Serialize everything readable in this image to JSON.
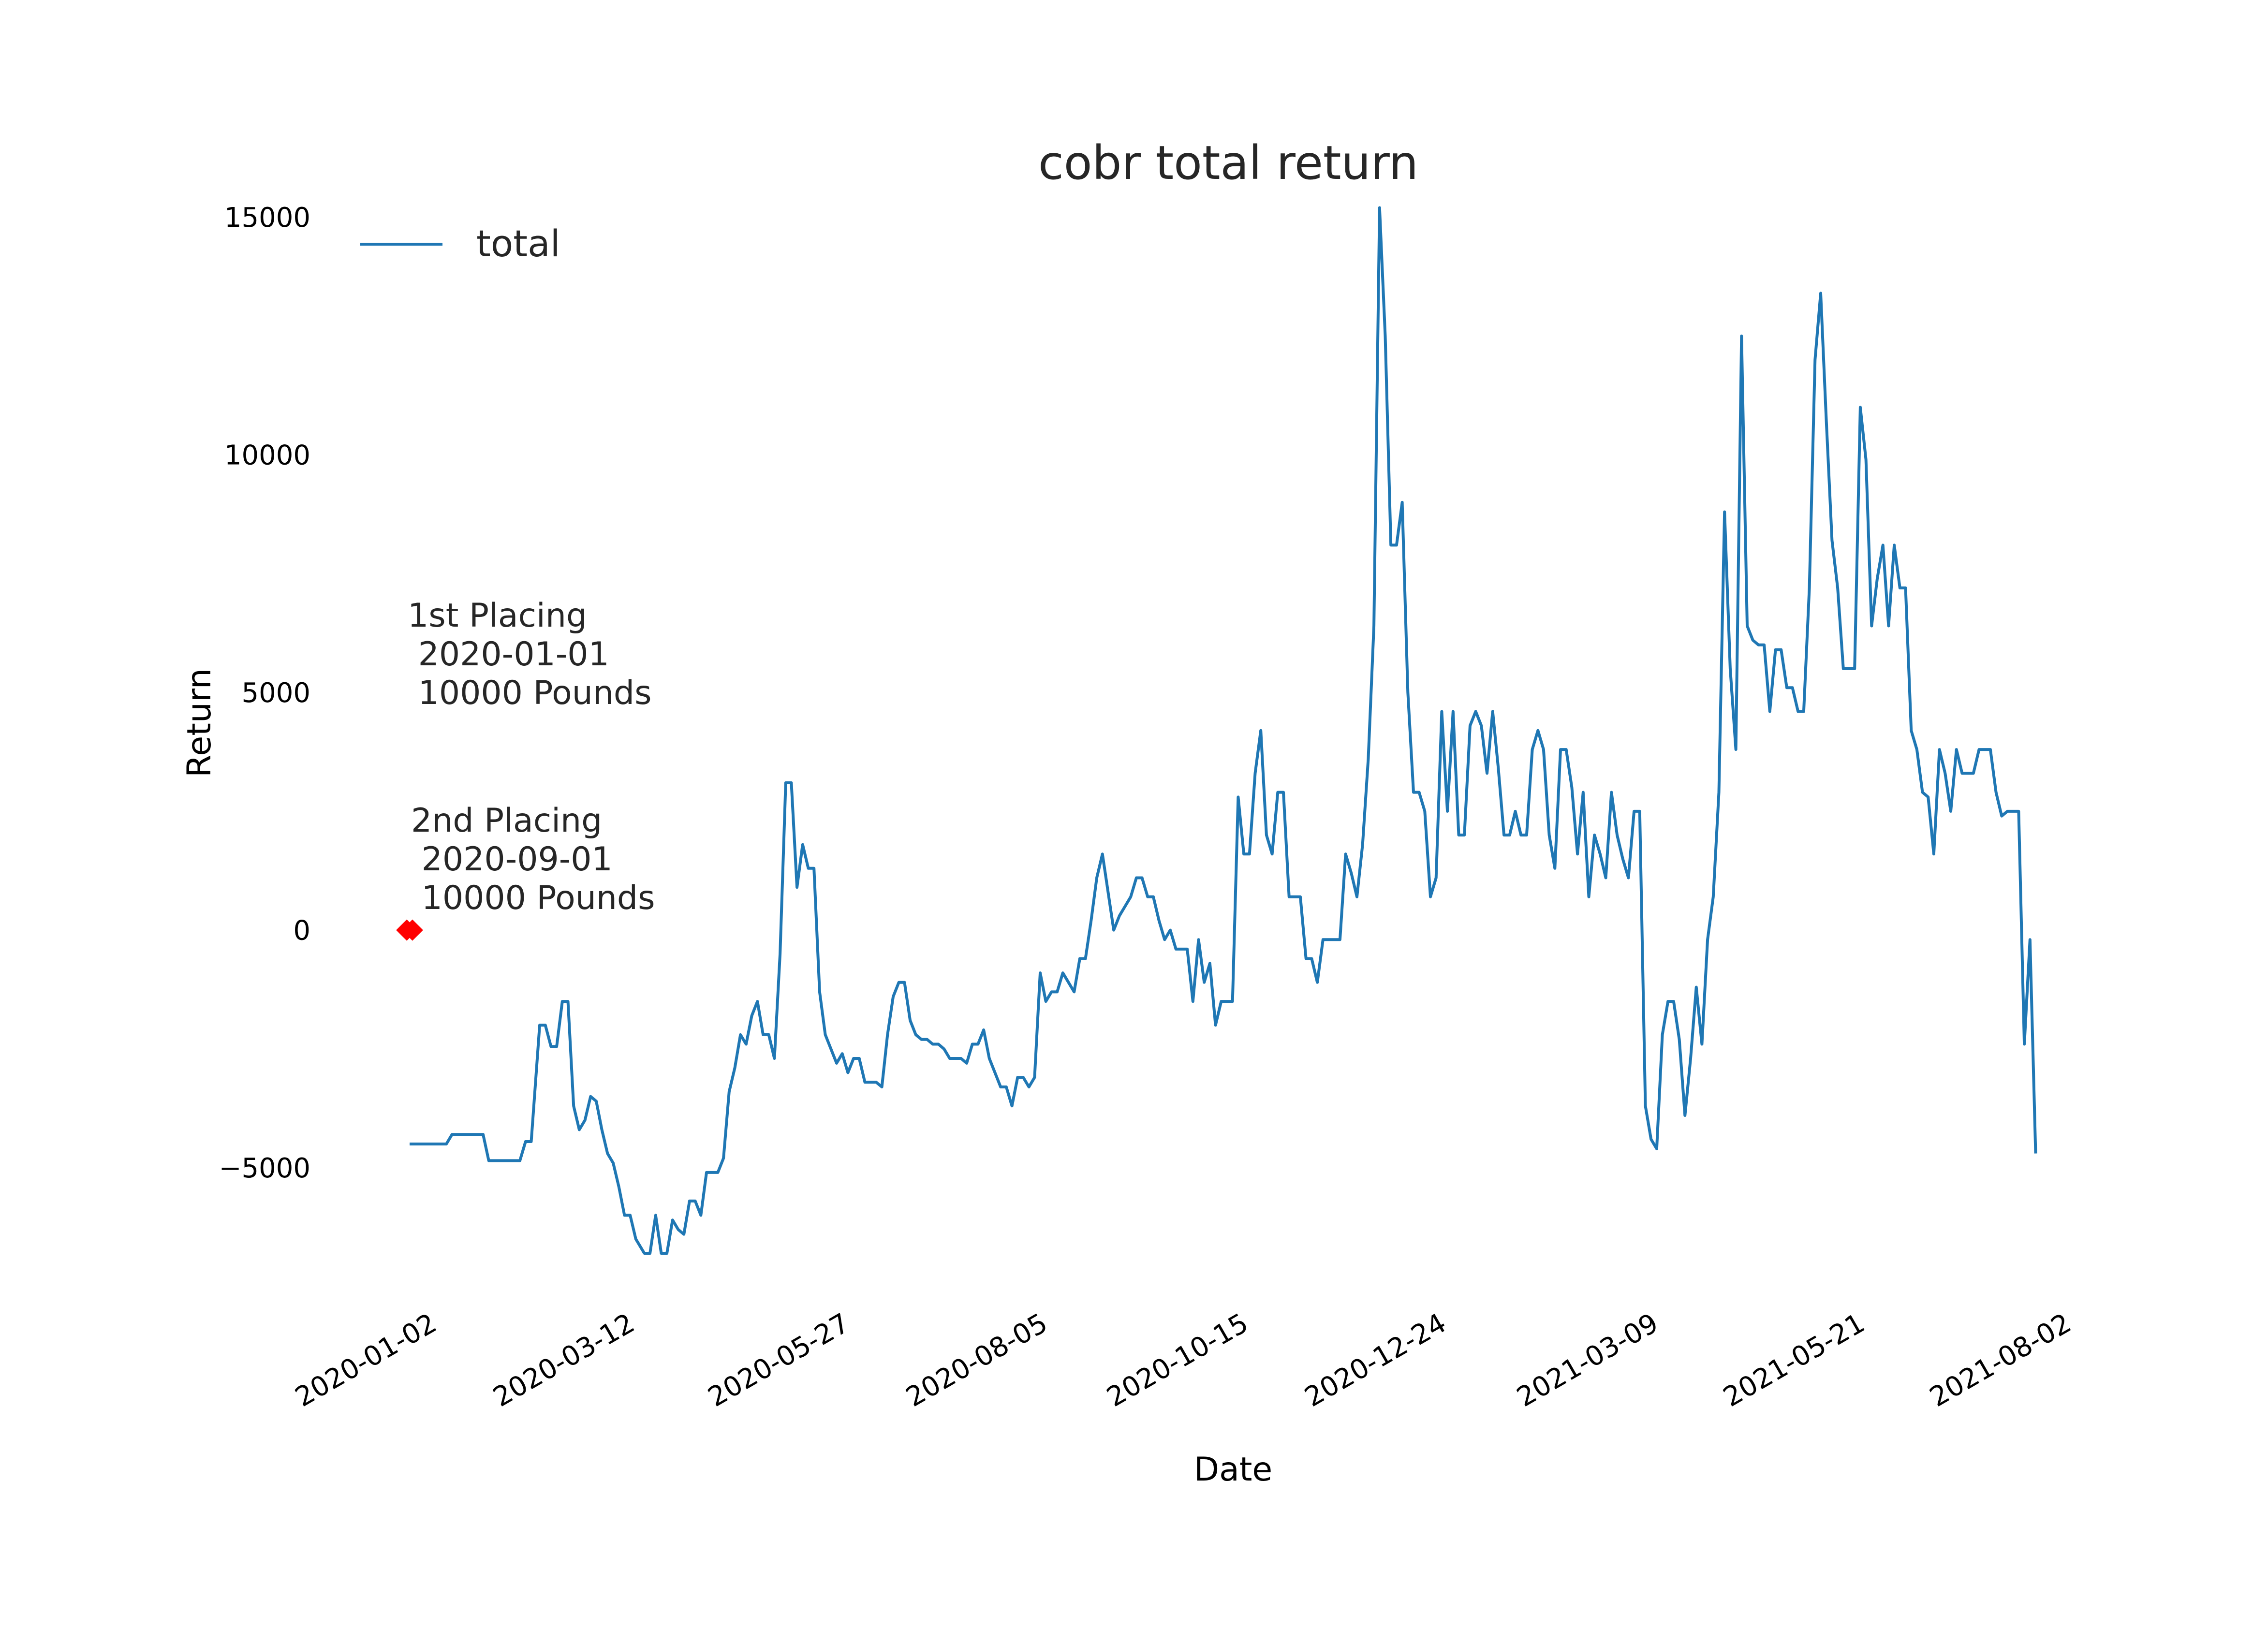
{
  "chart_data": {
    "type": "line",
    "title": "cobr total return",
    "xlabel": "Date",
    "ylabel": "Return",
    "x_range": [
      "2020-01-02",
      "2021-08-02"
    ],
    "ylim": [
      -8000,
      15500
    ],
    "grid": false,
    "legend": {
      "position": "top-left",
      "entries": [
        "total"
      ]
    },
    "x_ticks": [
      "2020-01-02",
      "2020-03-12",
      "2020-05-27",
      "2020-08-05",
      "2020-10-15",
      "2020-12-24",
      "2021-03-09",
      "2021-05-21",
      "2021-08-02"
    ],
    "y_ticks": [
      -5000,
      0,
      5000,
      10000,
      15000
    ],
    "y_tick_labels": [
      "−5000",
      "0",
      "5000",
      "10000",
      "15000"
    ],
    "series": [
      {
        "name": "total",
        "color": "#1f77b4",
        "points": [
          [
            "2020-01-02",
            -4500
          ],
          [
            "2020-01-15",
            -4500
          ],
          [
            "2020-01-17",
            -4300
          ],
          [
            "2020-01-28",
            -4300
          ],
          [
            "2020-01-30",
            -4850
          ],
          [
            "2020-02-10",
            -4850
          ],
          [
            "2020-02-12",
            -4450
          ],
          [
            "2020-02-14",
            -4450
          ],
          [
            "2020-02-17",
            -2000
          ],
          [
            "2020-02-19",
            -2000
          ],
          [
            "2020-02-21",
            -2450
          ],
          [
            "2020-02-23",
            -2450
          ],
          [
            "2020-02-25",
            -1500
          ],
          [
            "2020-02-27",
            -1500
          ],
          [
            "2020-02-29",
            -3700
          ],
          [
            "2020-03-02",
            -4200
          ],
          [
            "2020-03-04",
            -4000
          ],
          [
            "2020-03-06",
            -3500
          ],
          [
            "2020-03-08",
            -3600
          ],
          [
            "2020-03-10",
            -4200
          ],
          [
            "2020-03-12",
            -4700
          ],
          [
            "2020-03-14",
            -4900
          ],
          [
            "2020-03-16",
            -5400
          ],
          [
            "2020-03-18",
            -6000
          ],
          [
            "2020-03-20",
            -6000
          ],
          [
            "2020-03-22",
            -6500
          ],
          [
            "2020-03-25",
            -6800
          ],
          [
            "2020-03-27",
            -6800
          ],
          [
            "2020-03-29",
            -6000
          ],
          [
            "2020-03-31",
            -6800
          ],
          [
            "2020-04-02",
            -6800
          ],
          [
            "2020-04-04",
            -6100
          ],
          [
            "2020-04-06",
            -6300
          ],
          [
            "2020-04-08",
            -6400
          ],
          [
            "2020-04-10",
            -5700
          ],
          [
            "2020-04-12",
            -5700
          ],
          [
            "2020-04-14",
            -6000
          ],
          [
            "2020-04-16",
            -5100
          ],
          [
            "2020-04-18",
            -5100
          ],
          [
            "2020-04-20",
            -5100
          ],
          [
            "2020-04-22",
            -4800
          ],
          [
            "2020-04-24",
            -3400
          ],
          [
            "2020-04-26",
            -2900
          ],
          [
            "2020-04-28",
            -2200
          ],
          [
            "2020-04-30",
            -2400
          ],
          [
            "2020-05-02",
            -1800
          ],
          [
            "2020-05-04",
            -1500
          ],
          [
            "2020-05-06",
            -2200
          ],
          [
            "2020-05-08",
            -2200
          ],
          [
            "2020-05-10",
            -2700
          ],
          [
            "2020-05-12",
            -500
          ],
          [
            "2020-05-14",
            3100
          ],
          [
            "2020-05-16",
            3100
          ],
          [
            "2020-05-18",
            900
          ],
          [
            "2020-05-20",
            1800
          ],
          [
            "2020-05-22",
            1300
          ],
          [
            "2020-05-24",
            1300
          ],
          [
            "2020-05-26",
            -1300
          ],
          [
            "2020-05-28",
            -2200
          ],
          [
            "2020-05-30",
            -2500
          ],
          [
            "2020-06-01",
            -2800
          ],
          [
            "2020-06-03",
            -2600
          ],
          [
            "2020-06-05",
            -3000
          ],
          [
            "2020-06-07",
            -2700
          ],
          [
            "2020-06-09",
            -2700
          ],
          [
            "2020-06-11",
            -3200
          ],
          [
            "2020-06-13",
            -3200
          ],
          [
            "2020-06-15",
            -3200
          ],
          [
            "2020-06-17",
            -3300
          ],
          [
            "2020-06-19",
            -2200
          ],
          [
            "2020-06-21",
            -1400
          ],
          [
            "2020-06-23",
            -1100
          ],
          [
            "2020-06-25",
            -1100
          ],
          [
            "2020-06-27",
            -1900
          ],
          [
            "2020-06-29",
            -2200
          ],
          [
            "2020-07-01",
            -2300
          ],
          [
            "2020-07-03",
            -2300
          ],
          [
            "2020-07-05",
            -2400
          ],
          [
            "2020-07-07",
            -2400
          ],
          [
            "2020-07-09",
            -2500
          ],
          [
            "2020-07-11",
            -2700
          ],
          [
            "2020-07-13",
            -2700
          ],
          [
            "2020-07-15",
            -2700
          ],
          [
            "2020-07-17",
            -2800
          ],
          [
            "2020-07-19",
            -2400
          ],
          [
            "2020-07-21",
            -2400
          ],
          [
            "2020-07-23",
            -2100
          ],
          [
            "2020-07-25",
            -2700
          ],
          [
            "2020-07-27",
            -3000
          ],
          [
            "2020-07-29",
            -3300
          ],
          [
            "2020-07-31",
            -3300
          ],
          [
            "2020-08-02",
            -3700
          ],
          [
            "2020-08-04",
            -3100
          ],
          [
            "2020-08-06",
            -3100
          ],
          [
            "2020-08-08",
            -3300
          ],
          [
            "2020-08-10",
            -3100
          ],
          [
            "2020-08-12",
            -900
          ],
          [
            "2020-08-14",
            -1500
          ],
          [
            "2020-08-16",
            -1300
          ],
          [
            "2020-08-18",
            -1300
          ],
          [
            "2020-08-20",
            -900
          ],
          [
            "2020-08-22",
            -1100
          ],
          [
            "2020-08-24",
            -1300
          ],
          [
            "2020-08-26",
            -600
          ],
          [
            "2020-08-28",
            -600
          ],
          [
            "2020-08-30",
            200
          ],
          [
            "2020-09-01",
            1100
          ],
          [
            "2020-09-03",
            1600
          ],
          [
            "2020-09-05",
            800
          ],
          [
            "2020-09-07",
            0
          ],
          [
            "2020-09-09",
            300
          ],
          [
            "2020-09-11",
            500
          ],
          [
            "2020-09-13",
            700
          ],
          [
            "2020-09-15",
            1100
          ],
          [
            "2020-09-17",
            1100
          ],
          [
            "2020-09-19",
            700
          ],
          [
            "2020-09-21",
            700
          ],
          [
            "2020-09-23",
            200
          ],
          [
            "2020-09-25",
            -200
          ],
          [
            "2020-09-27",
            0
          ],
          [
            "2020-09-29",
            -400
          ],
          [
            "2020-10-01",
            -400
          ],
          [
            "2020-10-03",
            -400
          ],
          [
            "2020-10-05",
            -1500
          ],
          [
            "2020-10-07",
            -200
          ],
          [
            "2020-10-09",
            -1100
          ],
          [
            "2020-10-11",
            -700
          ],
          [
            "2020-10-13",
            -2000
          ],
          [
            "2020-10-15",
            -1500
          ],
          [
            "2020-10-17",
            -1500
          ],
          [
            "2020-10-19",
            -1500
          ],
          [
            "2020-10-21",
            2800
          ],
          [
            "2020-10-23",
            1600
          ],
          [
            "2020-10-25",
            1600
          ],
          [
            "2020-10-27",
            3300
          ],
          [
            "2020-10-29",
            4200
          ],
          [
            "2020-10-31",
            2000
          ],
          [
            "2020-11-02",
            1600
          ],
          [
            "2020-11-04",
            2900
          ],
          [
            "2020-11-06",
            2900
          ],
          [
            "2020-11-08",
            700
          ],
          [
            "2020-11-10",
            700
          ],
          [
            "2020-11-12",
            700
          ],
          [
            "2020-11-14",
            -600
          ],
          [
            "2020-11-16",
            -600
          ],
          [
            "2020-11-18",
            -1100
          ],
          [
            "2020-11-20",
            -200
          ],
          [
            "2020-11-22",
            -200
          ],
          [
            "2020-11-24",
            -200
          ],
          [
            "2020-11-26",
            -200
          ],
          [
            "2020-11-28",
            1600
          ],
          [
            "2020-11-30",
            1200
          ],
          [
            "2020-12-02",
            700
          ],
          [
            "2020-12-04",
            1800
          ],
          [
            "2020-12-06",
            3600
          ],
          [
            "2020-12-08",
            6400
          ],
          [
            "2020-12-10",
            15200
          ],
          [
            "2020-12-12",
            12500
          ],
          [
            "2020-12-14",
            8100
          ],
          [
            "2020-12-16",
            8100
          ],
          [
            "2020-12-18",
            9000
          ],
          [
            "2020-12-20",
            5000
          ],
          [
            "2020-12-22",
            2900
          ],
          [
            "2020-12-24",
            2900
          ],
          [
            "2020-12-26",
            2500
          ],
          [
            "2020-12-28",
            700
          ],
          [
            "2020-12-30",
            1100
          ],
          [
            "2021-01-01",
            4600
          ],
          [
            "2021-01-03",
            2500
          ],
          [
            "2021-01-05",
            4600
          ],
          [
            "2021-01-07",
            2000
          ],
          [
            "2021-01-09",
            2000
          ],
          [
            "2021-01-11",
            4300
          ],
          [
            "2021-01-13",
            4600
          ],
          [
            "2021-01-15",
            4300
          ],
          [
            "2021-01-17",
            3300
          ],
          [
            "2021-01-19",
            4600
          ],
          [
            "2021-01-21",
            3400
          ],
          [
            "2021-01-23",
            2000
          ],
          [
            "2021-01-25",
            2000
          ],
          [
            "2021-01-27",
            2500
          ],
          [
            "2021-01-29",
            2000
          ],
          [
            "2021-01-31",
            2000
          ],
          [
            "2021-02-02",
            3800
          ],
          [
            "2021-02-04",
            4200
          ],
          [
            "2021-02-06",
            3800
          ],
          [
            "2021-02-08",
            2000
          ],
          [
            "2021-02-10",
            1300
          ],
          [
            "2021-02-12",
            3800
          ],
          [
            "2021-02-14",
            3800
          ],
          [
            "2021-02-16",
            3000
          ],
          [
            "2021-02-18",
            1600
          ],
          [
            "2021-02-20",
            2900
          ],
          [
            "2021-02-22",
            700
          ],
          [
            "2021-02-24",
            2000
          ],
          [
            "2021-02-26",
            1600
          ],
          [
            "2021-02-28",
            1100
          ],
          [
            "2021-03-02",
            2900
          ],
          [
            "2021-03-04",
            2000
          ],
          [
            "2021-03-06",
            1500
          ],
          [
            "2021-03-08",
            1100
          ],
          [
            "2021-03-10",
            2500
          ],
          [
            "2021-03-12",
            2500
          ],
          [
            "2021-03-14",
            -3700
          ],
          [
            "2021-03-16",
            -4400
          ],
          [
            "2021-03-18",
            -4600
          ],
          [
            "2021-03-20",
            -2200
          ],
          [
            "2021-03-22",
            -1500
          ],
          [
            "2021-03-24",
            -1500
          ],
          [
            "2021-03-26",
            -2300
          ],
          [
            "2021-03-28",
            -3900
          ],
          [
            "2021-03-30",
            -2700
          ],
          [
            "2021-04-01",
            -1200
          ],
          [
            "2021-04-03",
            -2400
          ],
          [
            "2021-04-05",
            -200
          ],
          [
            "2021-04-07",
            700
          ],
          [
            "2021-04-09",
            2900
          ],
          [
            "2021-04-11",
            8800
          ],
          [
            "2021-04-13",
            5500
          ],
          [
            "2021-04-15",
            3800
          ],
          [
            "2021-04-17",
            12500
          ],
          [
            "2021-04-19",
            6400
          ],
          [
            "2021-04-21",
            6100
          ],
          [
            "2021-04-23",
            6000
          ],
          [
            "2021-04-25",
            6000
          ],
          [
            "2021-04-27",
            4600
          ],
          [
            "2021-04-29",
            5900
          ],
          [
            "2021-05-01",
            5900
          ],
          [
            "2021-05-03",
            5100
          ],
          [
            "2021-05-05",
            5100
          ],
          [
            "2021-05-07",
            4600
          ],
          [
            "2021-05-09",
            4600
          ],
          [
            "2021-05-11",
            7200
          ],
          [
            "2021-05-13",
            12000
          ],
          [
            "2021-05-15",
            13400
          ],
          [
            "2021-05-17",
            10700
          ],
          [
            "2021-05-19",
            8200
          ],
          [
            "2021-05-21",
            7200
          ],
          [
            "2021-05-23",
            5500
          ],
          [
            "2021-05-25",
            5500
          ],
          [
            "2021-05-27",
            5500
          ],
          [
            "2021-05-29",
            11000
          ],
          [
            "2021-05-31",
            9900
          ],
          [
            "2021-06-02",
            6400
          ],
          [
            "2021-06-04",
            7400
          ],
          [
            "2021-06-06",
            8100
          ],
          [
            "2021-06-08",
            6400
          ],
          [
            "2021-06-10",
            8100
          ],
          [
            "2021-06-12",
            7200
          ],
          [
            "2021-06-14",
            7200
          ],
          [
            "2021-06-16",
            4200
          ],
          [
            "2021-06-18",
            3800
          ],
          [
            "2021-06-20",
            2900
          ],
          [
            "2021-06-22",
            2800
          ],
          [
            "2021-06-24",
            1600
          ],
          [
            "2021-06-26",
            3800
          ],
          [
            "2021-06-28",
            3300
          ],
          [
            "2021-06-30",
            2500
          ],
          [
            "2021-07-02",
            3800
          ],
          [
            "2021-07-04",
            3300
          ],
          [
            "2021-07-06",
            3300
          ],
          [
            "2021-07-08",
            3300
          ],
          [
            "2021-07-10",
            3800
          ],
          [
            "2021-07-12",
            3800
          ],
          [
            "2021-07-14",
            3800
          ],
          [
            "2021-07-16",
            2900
          ],
          [
            "2021-07-18",
            2400
          ],
          [
            "2021-07-20",
            2500
          ],
          [
            "2021-07-22",
            2500
          ],
          [
            "2021-07-24",
            2500
          ],
          [
            "2021-07-26",
            -2400
          ],
          [
            "2021-07-28",
            -200
          ],
          [
            "2021-07-30",
            -4700
          ]
        ]
      }
    ],
    "markers": [
      {
        "x": "2020-01-01",
        "y": 0,
        "color": "#ff0000"
      },
      {
        "x": "2020-01-03",
        "y": 0,
        "color": "#ff0000"
      }
    ],
    "annotations": [
      {
        "lines": [
          "1st Placing",
          " 2020-01-01",
          " 10000 Pounds"
        ]
      },
      {
        "lines": [
          "2nd Placing",
          " 2020-09-01",
          " 10000 Pounds"
        ]
      }
    ]
  }
}
